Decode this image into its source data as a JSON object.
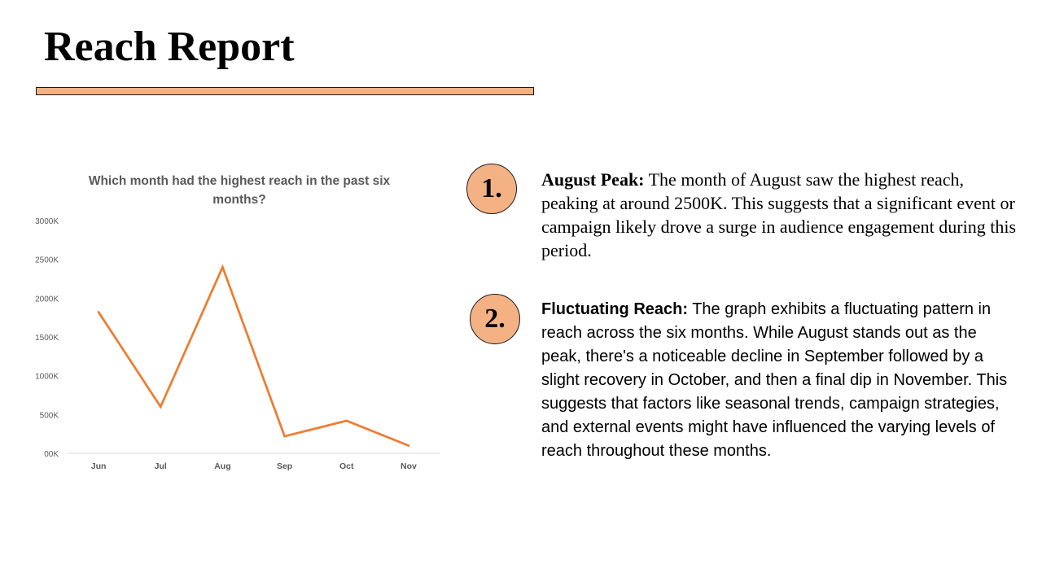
{
  "slide": {
    "title": "Reach Report"
  },
  "chart_data": {
    "type": "line",
    "title": "Which month had the highest reach in the past six months?",
    "categories": [
      "Jun",
      "Jul",
      "Aug",
      "Sep",
      "Oct",
      "Nov"
    ],
    "series": [
      {
        "values": [
          1820,
          600,
          2400,
          220,
          420,
          100
        ]
      }
    ],
    "y_ticks": [
      "00K",
      "500K",
      "1000K",
      "1500K",
      "2000K",
      "2500K",
      "3000K"
    ],
    "ylim": [
      0,
      3000
    ],
    "grid": false,
    "legend": "none",
    "line_color": "#ed7d31"
  },
  "insights": [
    {
      "number": "1.",
      "heading": "August Peak:",
      "text": " The month of August saw the highest reach, peaking at around 2500K. This suggests that a significant event or campaign likely drove a surge in audience engagement during this period."
    },
    {
      "number": "2.",
      "heading": "Fluctuating Reach:",
      "text": " The graph exhibits a fluctuating pattern in reach across the six months. While August stands out as the peak, there's a noticeable decline in September followed by a slight recovery in October, and then a final dip in November. This suggests that factors like seasonal trends, campaign strategies, and external events might have influenced the varying levels of reach throughout these months."
    }
  ]
}
